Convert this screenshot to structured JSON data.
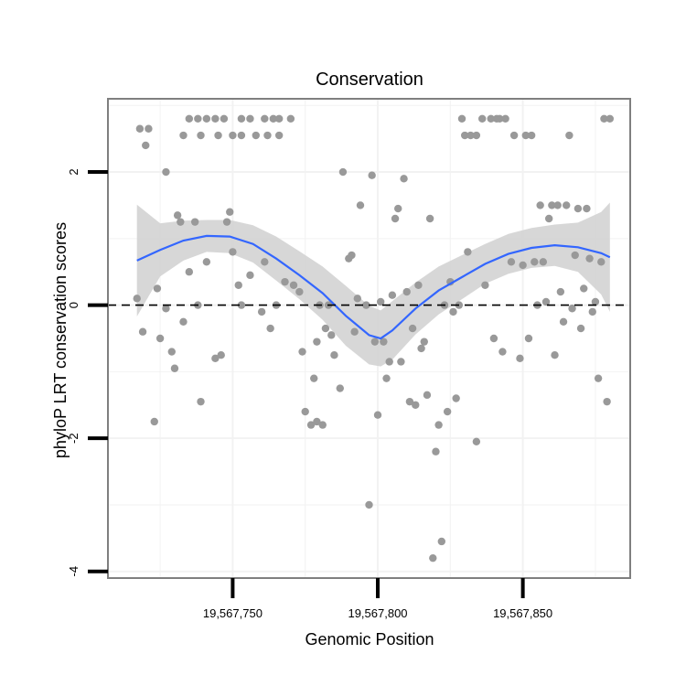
{
  "chart_data": {
    "type": "scatter",
    "title": "Conservation",
    "xlabel": "Genomic Position",
    "ylabel": "phyloP LRT conservation scores",
    "xlim": [
      19567707,
      19567887
    ],
    "ylim": [
      -4.1,
      3.1
    ],
    "x_ticks": [
      {
        "value": 19567750,
        "label": "19,567,750"
      },
      {
        "value": 19567800,
        "label": "19,567,800"
      },
      {
        "value": 19567850,
        "label": "19,567,850"
      }
    ],
    "y_ticks": [
      {
        "value": -4,
        "label": "-4"
      },
      {
        "value": -2,
        "label": "-2"
      },
      {
        "value": 0,
        "label": "0"
      },
      {
        "value": 2,
        "label": "2"
      }
    ],
    "reference_line": {
      "y": 0,
      "style": "dashed"
    },
    "colors": {
      "points": "#999999",
      "smooth": "#3366ff",
      "ribbon": "#d3d3d3",
      "grid": "#f2f2f2",
      "panel_border": "#7f7f7f",
      "background": "#ffffff"
    },
    "scatter": [
      {
        "x": 19567718,
        "y": 2.65
      },
      {
        "x": 19567721,
        "y": 2.65
      },
      {
        "x": 19567720,
        "y": 2.4
      },
      {
        "x": 19567727,
        "y": 2.0
      },
      {
        "x": 19567733,
        "y": 2.55
      },
      {
        "x": 19567735,
        "y": 2.8
      },
      {
        "x": 19567738,
        "y": 2.8
      },
      {
        "x": 19567739,
        "y": 2.55
      },
      {
        "x": 19567741,
        "y": 2.8
      },
      {
        "x": 19567744,
        "y": 2.8
      },
      {
        "x": 19567745,
        "y": 2.55
      },
      {
        "x": 19567747,
        "y": 2.8
      },
      {
        "x": 19567750,
        "y": 2.55
      },
      {
        "x": 19567753,
        "y": 2.55
      },
      {
        "x": 19567753,
        "y": 2.8
      },
      {
        "x": 19567756,
        "y": 2.8
      },
      {
        "x": 19567758,
        "y": 2.55
      },
      {
        "x": 19567761,
        "y": 2.8
      },
      {
        "x": 19567762,
        "y": 2.55
      },
      {
        "x": 19567764,
        "y": 2.8
      },
      {
        "x": 19567766,
        "y": 2.55
      },
      {
        "x": 19567766,
        "y": 2.8
      },
      {
        "x": 19567770,
        "y": 2.8
      },
      {
        "x": 19567717,
        "y": 0.1
      },
      {
        "x": 19567719,
        "y": -0.4
      },
      {
        "x": 19567723,
        "y": -1.75
      },
      {
        "x": 19567724,
        "y": 0.25
      },
      {
        "x": 19567725,
        "y": -0.5
      },
      {
        "x": 19567727,
        "y": -0.05
      },
      {
        "x": 19567729,
        "y": -0.7
      },
      {
        "x": 19567730,
        "y": -0.95
      },
      {
        "x": 19567731,
        "y": 1.35
      },
      {
        "x": 19567732,
        "y": 1.25
      },
      {
        "x": 19567733,
        "y": -0.25
      },
      {
        "x": 19567735,
        "y": 0.5
      },
      {
        "x": 19567737,
        "y": 1.25
      },
      {
        "x": 19567738,
        "y": 0.0
      },
      {
        "x": 19567739,
        "y": -1.45
      },
      {
        "x": 19567741,
        "y": 0.65
      },
      {
        "x": 19567744,
        "y": -0.8
      },
      {
        "x": 19567746,
        "y": -0.75
      },
      {
        "x": 19567748,
        "y": 1.25
      },
      {
        "x": 19567749,
        "y": 1.4
      },
      {
        "x": 19567750,
        "y": 0.8
      },
      {
        "x": 19567752,
        "y": 0.3
      },
      {
        "x": 19567753,
        "y": 0.0
      },
      {
        "x": 19567756,
        "y": 0.45
      },
      {
        "x": 19567760,
        "y": -0.1
      },
      {
        "x": 19567761,
        "y": 0.65
      },
      {
        "x": 19567763,
        "y": -0.35
      },
      {
        "x": 19567765,
        "y": 0.0
      },
      {
        "x": 19567768,
        "y": 0.35
      },
      {
        "x": 19567771,
        "y": 0.3
      },
      {
        "x": 19567773,
        "y": 0.2
      },
      {
        "x": 19567774,
        "y": -0.7
      },
      {
        "x": 19567775,
        "y": -1.6
      },
      {
        "x": 19567777,
        "y": -1.8
      },
      {
        "x": 19567778,
        "y": -1.1
      },
      {
        "x": 19567779,
        "y": -0.55
      },
      {
        "x": 19567779,
        "y": -1.75
      },
      {
        "x": 19567780,
        "y": 0.0
      },
      {
        "x": 19567781,
        "y": -1.8
      },
      {
        "x": 19567782,
        "y": -0.35
      },
      {
        "x": 19567783,
        "y": 0.0
      },
      {
        "x": 19567784,
        "y": -0.45
      },
      {
        "x": 19567785,
        "y": -0.75
      },
      {
        "x": 19567787,
        "y": -1.25
      },
      {
        "x": 19567788,
        "y": 2.0
      },
      {
        "x": 19567790,
        "y": 0.7
      },
      {
        "x": 19567791,
        "y": 0.75
      },
      {
        "x": 19567792,
        "y": -0.4
      },
      {
        "x": 19567793,
        "y": 0.1
      },
      {
        "x": 19567794,
        "y": 1.5
      },
      {
        "x": 19567796,
        "y": 0.0
      },
      {
        "x": 19567797,
        "y": -3.0
      },
      {
        "x": 19567798,
        "y": 1.95
      },
      {
        "x": 19567799,
        "y": -0.55
      },
      {
        "x": 19567800,
        "y": -1.65
      },
      {
        "x": 19567801,
        "y": 0.05
      },
      {
        "x": 19567802,
        "y": -0.55
      },
      {
        "x": 19567803,
        "y": -1.1
      },
      {
        "x": 19567804,
        "y": -0.85
      },
      {
        "x": 19567805,
        "y": 0.15
      },
      {
        "x": 19567806,
        "y": 1.3
      },
      {
        "x": 19567807,
        "y": 1.45
      },
      {
        "x": 19567808,
        "y": -0.85
      },
      {
        "x": 19567809,
        "y": 1.9
      },
      {
        "x": 19567810,
        "y": 0.2
      },
      {
        "x": 19567811,
        "y": -1.45
      },
      {
        "x": 19567812,
        "y": -0.35
      },
      {
        "x": 19567813,
        "y": -1.5
      },
      {
        "x": 19567814,
        "y": 0.3
      },
      {
        "x": 19567815,
        "y": -0.65
      },
      {
        "x": 19567816,
        "y": -0.55
      },
      {
        "x": 19567817,
        "y": -1.35
      },
      {
        "x": 19567818,
        "y": 1.3
      },
      {
        "x": 19567819,
        "y": -3.8
      },
      {
        "x": 19567820,
        "y": -2.2
      },
      {
        "x": 19567821,
        "y": -1.8
      },
      {
        "x": 19567822,
        "y": -3.55
      },
      {
        "x": 19567823,
        "y": 0.0
      },
      {
        "x": 19567824,
        "y": -1.6
      },
      {
        "x": 19567825,
        "y": 0.35
      },
      {
        "x": 19567826,
        "y": -0.1
      },
      {
        "x": 19567827,
        "y": -1.4
      },
      {
        "x": 19567828,
        "y": 0.0
      },
      {
        "x": 19567829,
        "y": 2.8
      },
      {
        "x": 19567830,
        "y": 2.55
      },
      {
        "x": 19567831,
        "y": 0.8
      },
      {
        "x": 19567832,
        "y": 2.55
      },
      {
        "x": 19567834,
        "y": -2.05
      },
      {
        "x": 19567834,
        "y": 2.55
      },
      {
        "x": 19567836,
        "y": 2.8
      },
      {
        "x": 19567837,
        "y": 0.3
      },
      {
        "x": 19567839,
        "y": 2.8
      },
      {
        "x": 19567840,
        "y": -0.5
      },
      {
        "x": 19567841,
        "y": 2.8
      },
      {
        "x": 19567842,
        "y": 2.8
      },
      {
        "x": 19567843,
        "y": -0.7
      },
      {
        "x": 19567844,
        "y": 2.8
      },
      {
        "x": 19567846,
        "y": 0.65
      },
      {
        "x": 19567847,
        "y": 2.55
      },
      {
        "x": 19567849,
        "y": -0.8
      },
      {
        "x": 19567850,
        "y": 0.6
      },
      {
        "x": 19567851,
        "y": 2.55
      },
      {
        "x": 19567852,
        "y": -0.5
      },
      {
        "x": 19567853,
        "y": 2.55
      },
      {
        "x": 19567854,
        "y": 0.65
      },
      {
        "x": 19567855,
        "y": 0.0
      },
      {
        "x": 19567856,
        "y": 1.5
      },
      {
        "x": 19567857,
        "y": 0.65
      },
      {
        "x": 19567858,
        "y": 0.05
      },
      {
        "x": 19567859,
        "y": 1.3
      },
      {
        "x": 19567860,
        "y": 1.5
      },
      {
        "x": 19567861,
        "y": -0.75
      },
      {
        "x": 19567862,
        "y": 1.5
      },
      {
        "x": 19567863,
        "y": 0.2
      },
      {
        "x": 19567864,
        "y": -0.25
      },
      {
        "x": 19567865,
        "y": 1.5
      },
      {
        "x": 19567866,
        "y": 2.55
      },
      {
        "x": 19567867,
        "y": -0.05
      },
      {
        "x": 19567868,
        "y": 0.75
      },
      {
        "x": 19567869,
        "y": 1.45
      },
      {
        "x": 19567870,
        "y": -0.35
      },
      {
        "x": 19567871,
        "y": 0.25
      },
      {
        "x": 19567872,
        "y": 1.45
      },
      {
        "x": 19567873,
        "y": 0.7
      },
      {
        "x": 19567874,
        "y": -0.1
      },
      {
        "x": 19567875,
        "y": 0.05
      },
      {
        "x": 19567876,
        "y": -1.1
      },
      {
        "x": 19567877,
        "y": 0.65
      },
      {
        "x": 19567878,
        "y": 2.8
      },
      {
        "x": 19567879,
        "y": -1.45
      },
      {
        "x": 19567880,
        "y": 2.8
      }
    ],
    "smooth": {
      "x": [
        19567717,
        19567725,
        19567733,
        19567741,
        19567749,
        19567757,
        19567765,
        19567773,
        19567781,
        19567789,
        19567797,
        19567801,
        19567805,
        19567813,
        19567821,
        19567829,
        19567837,
        19567845,
        19567853,
        19567861,
        19567869,
        19567877,
        19567880
      ],
      "y": [
        0.67,
        0.83,
        0.97,
        1.04,
        1.03,
        0.92,
        0.7,
        0.45,
        0.18,
        -0.16,
        -0.45,
        -0.5,
        -0.38,
        -0.05,
        0.22,
        0.42,
        0.62,
        0.77,
        0.86,
        0.9,
        0.87,
        0.78,
        0.72
      ],
      "lower": [
        -0.17,
        0.43,
        0.67,
        0.8,
        0.78,
        0.64,
        0.37,
        0.09,
        -0.22,
        -0.61,
        -0.89,
        -0.92,
        -0.82,
        -0.44,
        -0.14,
        0.09,
        0.32,
        0.47,
        0.56,
        0.59,
        0.5,
        0.16,
        -0.1
      ],
      "upper": [
        1.51,
        1.23,
        1.27,
        1.28,
        1.28,
        1.2,
        1.03,
        0.81,
        0.58,
        0.29,
        -0.01,
        -0.08,
        0.06,
        0.34,
        0.58,
        0.75,
        0.92,
        1.07,
        1.16,
        1.21,
        1.24,
        1.4,
        1.54
      ]
    }
  }
}
